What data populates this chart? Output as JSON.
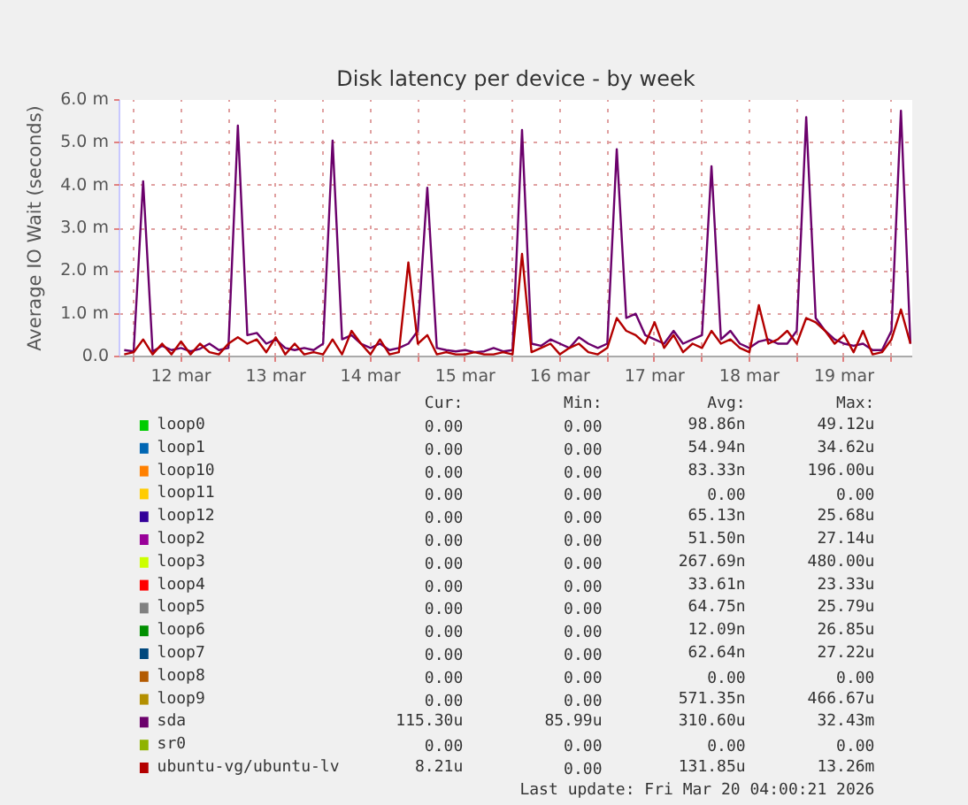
{
  "chart_data": {
    "type": "line",
    "title": "Disk latency per device - by week",
    "ylabel": "Average IO Wait (seconds)",
    "x": [
      "2026-03-11T21:36",
      "2026-03-12T00:00",
      "2026-03-12T02:24",
      "2026-03-12T04:48",
      "2026-03-12T07:12",
      "2026-03-12T09:36",
      "2026-03-12T12:00",
      "2026-03-12T14:24",
      "2026-03-12T16:48",
      "2026-03-12T19:12",
      "2026-03-12T21:36",
      "2026-03-13T00:00",
      "2026-03-13T02:24",
      "2026-03-13T04:48",
      "2026-03-13T07:12",
      "2026-03-13T09:36",
      "2026-03-13T12:00",
      "2026-03-13T14:24",
      "2026-03-13T16:48",
      "2026-03-13T19:12",
      "2026-03-13T21:36",
      "2026-03-14T00:00",
      "2026-03-14T02:24",
      "2026-03-14T04:48",
      "2026-03-14T07:12",
      "2026-03-14T09:36",
      "2026-03-14T12:00",
      "2026-03-14T14:24",
      "2026-03-14T16:48",
      "2026-03-14T19:12",
      "2026-03-14T21:36",
      "2026-03-15T00:00",
      "2026-03-15T02:24",
      "2026-03-15T04:48",
      "2026-03-15T07:12",
      "2026-03-15T09:36",
      "2026-03-15T12:00",
      "2026-03-15T14:24",
      "2026-03-15T16:48",
      "2026-03-15T19:12",
      "2026-03-15T21:36",
      "2026-03-16T00:00",
      "2026-03-16T02:24",
      "2026-03-16T04:48",
      "2026-03-16T07:12",
      "2026-03-16T09:36",
      "2026-03-16T12:00",
      "2026-03-16T14:24",
      "2026-03-16T16:48",
      "2026-03-16T19:12",
      "2026-03-16T21:36",
      "2026-03-17T00:00",
      "2026-03-17T02:24",
      "2026-03-17T04:48",
      "2026-03-17T07:12",
      "2026-03-17T09:36",
      "2026-03-17T12:00",
      "2026-03-17T14:24",
      "2026-03-17T16:48",
      "2026-03-17T19:12",
      "2026-03-17T21:36",
      "2026-03-18T00:00",
      "2026-03-18T02:24",
      "2026-03-18T04:48",
      "2026-03-18T07:12",
      "2026-03-18T09:36",
      "2026-03-18T12:00",
      "2026-03-18T14:24",
      "2026-03-18T16:48",
      "2026-03-18T19:12",
      "2026-03-18T21:36",
      "2026-03-19T00:00",
      "2026-03-19T02:24",
      "2026-03-19T04:48",
      "2026-03-19T07:12",
      "2026-03-19T09:36",
      "2026-03-19T12:00",
      "2026-03-19T14:24",
      "2026-03-19T16:48",
      "2026-03-19T19:12",
      "2026-03-19T21:36",
      "2026-03-20T00:00",
      "2026-03-20T02:24",
      "2026-03-20T04:48"
    ],
    "xlim": [
      "2026-03-11T20:24",
      "2026-03-20T05:16"
    ],
    "xticks": [
      {
        "value": "2026-03-12T00:00",
        "label": null
      },
      {
        "value": "2026-03-12T12:00",
        "label": "12 mar"
      },
      {
        "value": "2026-03-13T00:00",
        "label": null
      },
      {
        "value": "2026-03-13T12:00",
        "label": "13 mar"
      },
      {
        "value": "2026-03-14T00:00",
        "label": null
      },
      {
        "value": "2026-03-14T12:00",
        "label": "14 mar"
      },
      {
        "value": "2026-03-15T00:00",
        "label": null
      },
      {
        "value": "2026-03-15T12:00",
        "label": "15 mar"
      },
      {
        "value": "2026-03-16T00:00",
        "label": null
      },
      {
        "value": "2026-03-16T12:00",
        "label": "16 mar"
      },
      {
        "value": "2026-03-17T00:00",
        "label": null
      },
      {
        "value": "2026-03-17T12:00",
        "label": "17 mar"
      },
      {
        "value": "2026-03-18T00:00",
        "label": null
      },
      {
        "value": "2026-03-18T12:00",
        "label": "18 mar"
      },
      {
        "value": "2026-03-19T00:00",
        "label": null
      },
      {
        "value": "2026-03-19T12:00",
        "label": "19 mar"
      },
      {
        "value": "2026-03-20T00:00",
        "label": null
      }
    ],
    "ylim": [
      0,
      6
    ],
    "yticks": [
      {
        "value": 0,
        "label": "0.0"
      },
      {
        "value": 1,
        "label": "1.0 m"
      },
      {
        "value": 2,
        "label": "2.0 m"
      },
      {
        "value": 3,
        "label": "3.0 m"
      },
      {
        "value": 4,
        "label": "4.0 m"
      },
      {
        "value": 5,
        "label": "5.0 m"
      },
      {
        "value": 6,
        "label": "6.0 m"
      }
    ],
    "grid": true,
    "legend": "bottom",
    "series": [
      {
        "name": "loop0",
        "color": "#00cc00",
        "values": [
          null,
          null,
          null,
          null,
          null,
          null,
          null,
          null,
          null,
          null,
          null,
          null,
          null,
          null,
          null,
          null,
          null,
          null,
          null,
          null,
          null,
          null,
          null,
          null,
          null,
          null,
          null,
          null,
          null,
          null,
          null,
          null,
          null,
          null,
          null,
          null,
          null,
          null,
          null,
          null,
          null,
          null,
          null,
          null,
          null,
          null,
          null,
          null,
          null,
          null,
          null,
          null,
          null,
          null,
          null,
          null,
          null,
          null,
          null,
          null,
          null,
          null,
          null,
          null,
          null,
          null,
          null,
          null,
          null,
          null,
          null,
          null,
          null,
          null,
          null,
          null,
          null,
          null,
          null,
          null,
          null,
          null,
          null,
          null
        ]
      },
      {
        "name": "loop1",
        "color": "#0066b3",
        "values": [
          null,
          null,
          null,
          null,
          null,
          null,
          null,
          null,
          null,
          null,
          null,
          null,
          null,
          null,
          null,
          null,
          null,
          null,
          null,
          null,
          null,
          null,
          null,
          null,
          null,
          null,
          null,
          null,
          null,
          null,
          null,
          null,
          null,
          null,
          null,
          null,
          null,
          null,
          null,
          null,
          null,
          null,
          null,
          null,
          null,
          null,
          null,
          null,
          null,
          null,
          null,
          null,
          null,
          null,
          null,
          null,
          null,
          null,
          null,
          null,
          null,
          null,
          null,
          null,
          null,
          null,
          null,
          null,
          null,
          null,
          null,
          null,
          null,
          null,
          null,
          null,
          null,
          null,
          null,
          null,
          null,
          null,
          null,
          null
        ]
      },
      {
        "name": "loop10",
        "color": "#ff8000",
        "values": [
          null,
          null,
          null,
          null,
          null,
          null,
          null,
          null,
          null,
          null,
          null,
          null,
          null,
          null,
          null,
          null,
          null,
          null,
          null,
          null,
          null,
          null,
          null,
          null,
          null,
          null,
          null,
          null,
          null,
          null,
          null,
          null,
          null,
          null,
          null,
          null,
          null,
          null,
          null,
          null,
          null,
          null,
          null,
          null,
          null,
          null,
          null,
          null,
          null,
          null,
          null,
          null,
          null,
          null,
          null,
          null,
          null,
          null,
          null,
          null,
          null,
          null,
          null,
          null,
          null,
          null,
          null,
          null,
          null,
          null,
          null,
          null,
          null,
          null,
          null,
          null,
          null,
          null,
          null,
          null,
          null,
          null,
          null,
          null
        ]
      },
      {
        "name": "loop11",
        "color": "#ffcc00",
        "values": [
          null,
          null,
          null,
          null,
          null,
          null,
          null,
          null,
          null,
          null,
          null,
          null,
          null,
          null,
          null,
          null,
          null,
          null,
          null,
          null,
          null,
          null,
          null,
          null,
          null,
          null,
          null,
          null,
          null,
          null,
          null,
          null,
          null,
          null,
          null,
          null,
          null,
          null,
          null,
          null,
          null,
          null,
          null,
          null,
          null,
          null,
          null,
          null,
          null,
          null,
          null,
          null,
          null,
          null,
          null,
          null,
          null,
          null,
          null,
          null,
          null,
          null,
          null,
          null,
          null,
          null,
          null,
          null,
          null,
          null,
          null,
          null,
          null,
          null,
          null,
          null,
          null,
          null,
          null,
          null,
          null,
          null,
          null,
          null
        ]
      },
      {
        "name": "loop12",
        "color": "#330099",
        "values": [
          null,
          null,
          null,
          null,
          null,
          null,
          null,
          null,
          null,
          null,
          null,
          null,
          null,
          null,
          null,
          null,
          null,
          null,
          null,
          null,
          null,
          null,
          null,
          null,
          null,
          null,
          null,
          null,
          null,
          null,
          null,
          null,
          null,
          null,
          null,
          null,
          null,
          null,
          null,
          null,
          null,
          null,
          null,
          null,
          null,
          null,
          null,
          null,
          null,
          null,
          null,
          null,
          null,
          null,
          null,
          null,
          null,
          null,
          null,
          null,
          null,
          null,
          null,
          null,
          null,
          null,
          null,
          null,
          null,
          null,
          null,
          null,
          null,
          null,
          null,
          null,
          null,
          null,
          null,
          null,
          null,
          null,
          null,
          null
        ]
      },
      {
        "name": "loop2",
        "color": "#990099",
        "values": [
          null,
          null,
          null,
          null,
          null,
          null,
          null,
          null,
          null,
          null,
          null,
          null,
          null,
          null,
          null,
          null,
          null,
          null,
          null,
          null,
          null,
          null,
          null,
          null,
          null,
          null,
          null,
          null,
          null,
          null,
          null,
          null,
          null,
          null,
          null,
          null,
          null,
          null,
          null,
          null,
          null,
          null,
          null,
          null,
          null,
          null,
          null,
          null,
          null,
          null,
          null,
          null,
          null,
          null,
          null,
          null,
          null,
          null,
          null,
          null,
          null,
          null,
          null,
          null,
          null,
          null,
          null,
          null,
          null,
          null,
          null,
          null,
          null,
          null,
          null,
          null,
          null,
          null,
          null,
          null,
          null,
          null,
          null,
          null
        ]
      },
      {
        "name": "loop3",
        "color": "#ccff00",
        "values": [
          null,
          null,
          null,
          null,
          null,
          null,
          null,
          null,
          null,
          null,
          null,
          null,
          null,
          null,
          null,
          null,
          null,
          null,
          null,
          null,
          null,
          null,
          null,
          null,
          null,
          null,
          null,
          null,
          null,
          null,
          null,
          null,
          null,
          null,
          null,
          null,
          null,
          null,
          null,
          null,
          null,
          null,
          null,
          null,
          null,
          null,
          null,
          null,
          null,
          null,
          null,
          null,
          null,
          null,
          null,
          null,
          null,
          null,
          null,
          null,
          null,
          null,
          null,
          null,
          null,
          null,
          null,
          null,
          null,
          null,
          null,
          null,
          null,
          null,
          null,
          null,
          null,
          null,
          null,
          null,
          null,
          null,
          null,
          null
        ]
      },
      {
        "name": "loop4",
        "color": "#ff0000",
        "values": [
          null,
          null,
          null,
          null,
          null,
          null,
          null,
          null,
          null,
          null,
          null,
          null,
          null,
          null,
          null,
          null,
          null,
          null,
          null,
          null,
          null,
          null,
          null,
          null,
          null,
          null,
          null,
          null,
          null,
          null,
          null,
          null,
          null,
          null,
          null,
          null,
          null,
          null,
          null,
          null,
          null,
          null,
          null,
          null,
          null,
          null,
          null,
          null,
          null,
          null,
          null,
          null,
          null,
          null,
          null,
          null,
          null,
          null,
          null,
          null,
          null,
          null,
          null,
          null,
          null,
          null,
          null,
          null,
          null,
          null,
          null,
          null,
          null,
          null,
          null,
          null,
          null,
          null,
          null,
          null,
          null,
          null,
          null,
          null
        ]
      },
      {
        "name": "loop5",
        "color": "#808080",
        "values": [
          null,
          null,
          null,
          null,
          null,
          null,
          null,
          null,
          null,
          null,
          null,
          null,
          null,
          null,
          null,
          null,
          null,
          null,
          null,
          null,
          null,
          null,
          null,
          null,
          null,
          null,
          null,
          null,
          null,
          null,
          null,
          null,
          null,
          null,
          null,
          null,
          null,
          null,
          null,
          null,
          null,
          null,
          null,
          null,
          null,
          null,
          null,
          null,
          null,
          null,
          null,
          null,
          null,
          null,
          null,
          null,
          null,
          null,
          null,
          null,
          null,
          null,
          null,
          null,
          null,
          null,
          null,
          null,
          null,
          null,
          null,
          null,
          null,
          null,
          null,
          null,
          null,
          null,
          null,
          null,
          null,
          null,
          null,
          null
        ]
      },
      {
        "name": "loop6",
        "color": "#008f00",
        "values": [
          null,
          null,
          null,
          null,
          null,
          null,
          null,
          null,
          null,
          null,
          null,
          null,
          null,
          null,
          null,
          null,
          null,
          null,
          null,
          null,
          null,
          null,
          null,
          null,
          null,
          null,
          null,
          null,
          null,
          null,
          null,
          null,
          null,
          null,
          null,
          null,
          null,
          null,
          null,
          null,
          null,
          null,
          null,
          null,
          null,
          null,
          null,
          null,
          null,
          null,
          null,
          null,
          null,
          null,
          null,
          null,
          null,
          null,
          null,
          null,
          null,
          null,
          null,
          null,
          null,
          null,
          null,
          null,
          null,
          null,
          null,
          null,
          null,
          null,
          null,
          null,
          null,
          null,
          null,
          null,
          null,
          null,
          null,
          null
        ]
      },
      {
        "name": "loop7",
        "color": "#00487d",
        "values": [
          null,
          null,
          null,
          null,
          null,
          null,
          null,
          null,
          null,
          null,
          null,
          null,
          null,
          null,
          null,
          null,
          null,
          null,
          null,
          null,
          null,
          null,
          null,
          null,
          null,
          null,
          null,
          null,
          null,
          null,
          null,
          null,
          null,
          null,
          null,
          null,
          null,
          null,
          null,
          null,
          null,
          null,
          null,
          null,
          null,
          null,
          null,
          null,
          null,
          null,
          null,
          null,
          null,
          null,
          null,
          null,
          null,
          null,
          null,
          null,
          null,
          null,
          null,
          null,
          null,
          null,
          null,
          null,
          null,
          null,
          null,
          null,
          null,
          null,
          null,
          null,
          null,
          null,
          null,
          null,
          null,
          null,
          null,
          null
        ]
      },
      {
        "name": "loop8",
        "color": "#b35a00",
        "values": [
          null,
          null,
          null,
          null,
          null,
          null,
          null,
          null,
          null,
          null,
          null,
          null,
          null,
          null,
          null,
          null,
          null,
          null,
          null,
          null,
          null,
          null,
          null,
          null,
          null,
          null,
          null,
          null,
          null,
          null,
          null,
          null,
          null,
          null,
          null,
          null,
          null,
          null,
          null,
          null,
          null,
          null,
          null,
          null,
          null,
          null,
          null,
          null,
          null,
          null,
          null,
          null,
          null,
          null,
          null,
          null,
          null,
          null,
          null,
          null,
          null,
          null,
          null,
          null,
          null,
          null,
          null,
          null,
          null,
          null,
          null,
          null,
          null,
          null,
          null,
          null,
          null,
          null,
          null,
          null,
          null,
          null,
          null,
          null
        ]
      },
      {
        "name": "loop9",
        "color": "#b38f00",
        "values": [
          null,
          null,
          null,
          null,
          null,
          null,
          null,
          null,
          null,
          null,
          null,
          null,
          null,
          null,
          null,
          null,
          null,
          null,
          null,
          null,
          null,
          null,
          null,
          null,
          null,
          null,
          null,
          null,
          null,
          null,
          null,
          null,
          null,
          null,
          null,
          null,
          null,
          null,
          null,
          null,
          null,
          null,
          null,
          null,
          null,
          null,
          null,
          null,
          null,
          null,
          null,
          null,
          null,
          null,
          null,
          null,
          null,
          null,
          null,
          null,
          null,
          null,
          null,
          null,
          null,
          null,
          null,
          null,
          null,
          null,
          null,
          null,
          null,
          null,
          null,
          null,
          null,
          null,
          null,
          null,
          null,
          null,
          null,
          null
        ]
      },
      {
        "name": "sda",
        "color": "#6b006b",
        "values": [
          0.15,
          0.12,
          4.1,
          0.12,
          0.25,
          0.15,
          0.2,
          0.12,
          0.18,
          0.3,
          0.15,
          0.2,
          5.4,
          0.5,
          0.55,
          0.3,
          0.4,
          0.2,
          0.15,
          0.2,
          0.15,
          0.3,
          5.05,
          0.4,
          0.5,
          0.3,
          0.2,
          0.3,
          0.15,
          0.2,
          0.3,
          0.6,
          3.95,
          0.2,
          0.15,
          0.12,
          0.15,
          0.1,
          0.12,
          0.2,
          0.12,
          0.15,
          5.3,
          0.3,
          0.25,
          0.4,
          0.3,
          0.2,
          0.45,
          0.3,
          0.2,
          0.3,
          4.85,
          0.9,
          1.0,
          0.5,
          0.4,
          0.3,
          0.6,
          0.3,
          0.4,
          0.5,
          4.45,
          0.4,
          0.6,
          0.3,
          0.2,
          0.35,
          0.4,
          0.3,
          0.3,
          0.6,
          5.6,
          0.9,
          0.6,
          0.4,
          0.3,
          0.25,
          0.3,
          0.15,
          0.15,
          0.6,
          5.75,
          0.3
        ]
      },
      {
        "name": "sr0",
        "color": "#8fb300",
        "values": [
          null,
          null,
          null,
          null,
          null,
          null,
          null,
          null,
          null,
          null,
          null,
          null,
          null,
          null,
          null,
          null,
          null,
          null,
          null,
          null,
          null,
          null,
          null,
          null,
          null,
          null,
          null,
          null,
          null,
          null,
          null,
          null,
          null,
          null,
          null,
          null,
          null,
          null,
          null,
          null,
          null,
          null,
          null,
          null,
          null,
          null,
          null,
          null,
          null,
          null,
          null,
          null,
          null,
          null,
          null,
          null,
          null,
          null,
          null,
          null,
          null,
          null,
          null,
          null,
          null,
          null,
          null,
          null,
          null,
          null,
          null,
          null,
          null,
          null,
          null,
          null,
          null,
          null,
          null,
          null,
          null,
          null,
          null,
          null
        ]
      },
      {
        "name": "ubuntu-vg/ubuntu-lv",
        "color": "#b30000",
        "values": [
          0.05,
          0.1,
          0.4,
          0.05,
          0.3,
          0.05,
          0.35,
          0.05,
          0.3,
          0.1,
          0.05,
          0.3,
          0.45,
          0.3,
          0.4,
          0.1,
          0.45,
          0.05,
          0.3,
          0.05,
          0.1,
          0.05,
          0.4,
          0.05,
          0.6,
          0.3,
          0.05,
          0.4,
          0.05,
          0.1,
          2.2,
          0.3,
          0.5,
          0.05,
          0.1,
          0.05,
          0.05,
          0.1,
          0.05,
          0.05,
          0.1,
          0.05,
          2.4,
          0.1,
          0.2,
          0.3,
          0.05,
          0.2,
          0.3,
          0.1,
          0.05,
          0.2,
          0.9,
          0.6,
          0.5,
          0.3,
          0.8,
          0.2,
          0.5,
          0.1,
          0.3,
          0.2,
          0.6,
          0.3,
          0.4,
          0.2,
          0.1,
          1.2,
          0.3,
          0.4,
          0.6,
          0.3,
          0.9,
          0.8,
          0.6,
          0.3,
          0.5,
          0.1,
          0.6,
          0.05,
          0.1,
          0.4,
          1.1,
          0.3
        ]
      }
    ],
    "annotations": [
      "Cur: Min: Avg: Max:",
      "0.00 0.00 98.86n 49.12u",
      "0.00 0.00 54.94n 34.62u",
      "0.00 0.00 83.33n 196.00u",
      "0.00 0.00 0.00 0.00",
      "0.00 0.00 65.13n 25.68u",
      "0.00 0.00 51.50n 27.14u",
      "0.00 0.00 267.69n 480.00u",
      "0.00 0.00 33.61n 23.33u",
      "0.00 0.00 64.75n 25.79u",
      "0.00 0.00 12.09n 26.85u",
      "0.00 0.00 62.64n 27.22u",
      "0.00 0.00 0.00 0.00",
      "0.00 0.00 571.35n 466.67u",
      "115.30u 85.99u 310.60u 32.43m",
      "0.00 0.00 0.00 0.00",
      "8.21u 0.00 131.85u 13.26m",
      "Last update: Fri Mar 20 04:00:21 2026"
    ]
  }
}
